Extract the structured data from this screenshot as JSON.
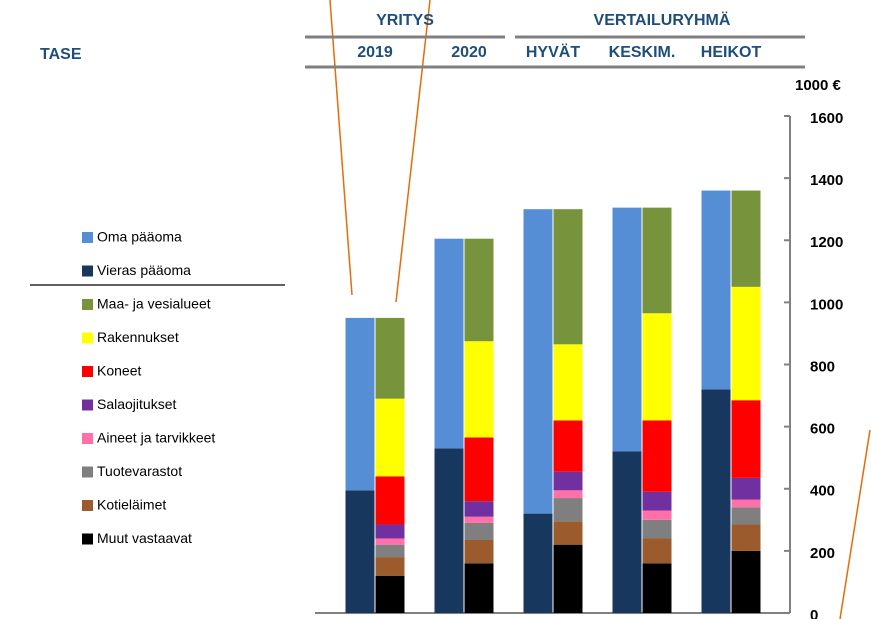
{
  "chart_data": {
    "type": "bar",
    "title": "TASE",
    "group_labels": [
      "YRITYS",
      "VERTAILURYHMÄ"
    ],
    "y_axis_label": "1000 €",
    "categories": [
      "2019",
      "2020",
      "HYVÄT",
      "KESKIM.",
      "HEIKOT"
    ],
    "stacks": [
      {
        "series": [
          {
            "name": "Vieras pääoma",
            "color": "#17375e",
            "values": [
              395,
              530,
              320,
              520,
              720
            ]
          },
          {
            "name": "Oma pääoma",
            "color": "#558ed5",
            "values": [
              555,
              675,
              980,
              785,
              640
            ]
          }
        ]
      },
      {
        "series": [
          {
            "name": "Muut vastaavat",
            "color": "#000000",
            "values": [
              120,
              160,
              220,
              160,
              200
            ]
          },
          {
            "name": "Kotieläimet",
            "color": "#9c5b2c",
            "values": [
              60,
              75,
              75,
              80,
              85
            ]
          },
          {
            "name": "Tuotevarastot",
            "color": "#7f7f7f",
            "values": [
              40,
              55,
              75,
              60,
              55
            ]
          },
          {
            "name": "Aineet ja tarvikkeet",
            "color": "#ff6fa8",
            "values": [
              20,
              20,
              25,
              30,
              25
            ]
          },
          {
            "name": "Salaojitukset",
            "color": "#7030a0",
            "values": [
              45,
              50,
              60,
              60,
              70
            ]
          },
          {
            "name": "Koneet",
            "color": "#ff0000",
            "values": [
              155,
              205,
              165,
              230,
              250
            ]
          },
          {
            "name": "Rakennukset",
            "color": "#ffff00",
            "values": [
              250,
              310,
              245,
              345,
              365
            ]
          },
          {
            "name": "Maa- ja vesialueet",
            "color": "#77933c",
            "values": [
              260,
              330,
              435,
              340,
              310
            ]
          }
        ]
      }
    ],
    "ylim": [
      0,
      1600
    ],
    "yticks": [
      0,
      200,
      400,
      600,
      800,
      1000,
      1200,
      1400,
      1600
    ]
  }
}
